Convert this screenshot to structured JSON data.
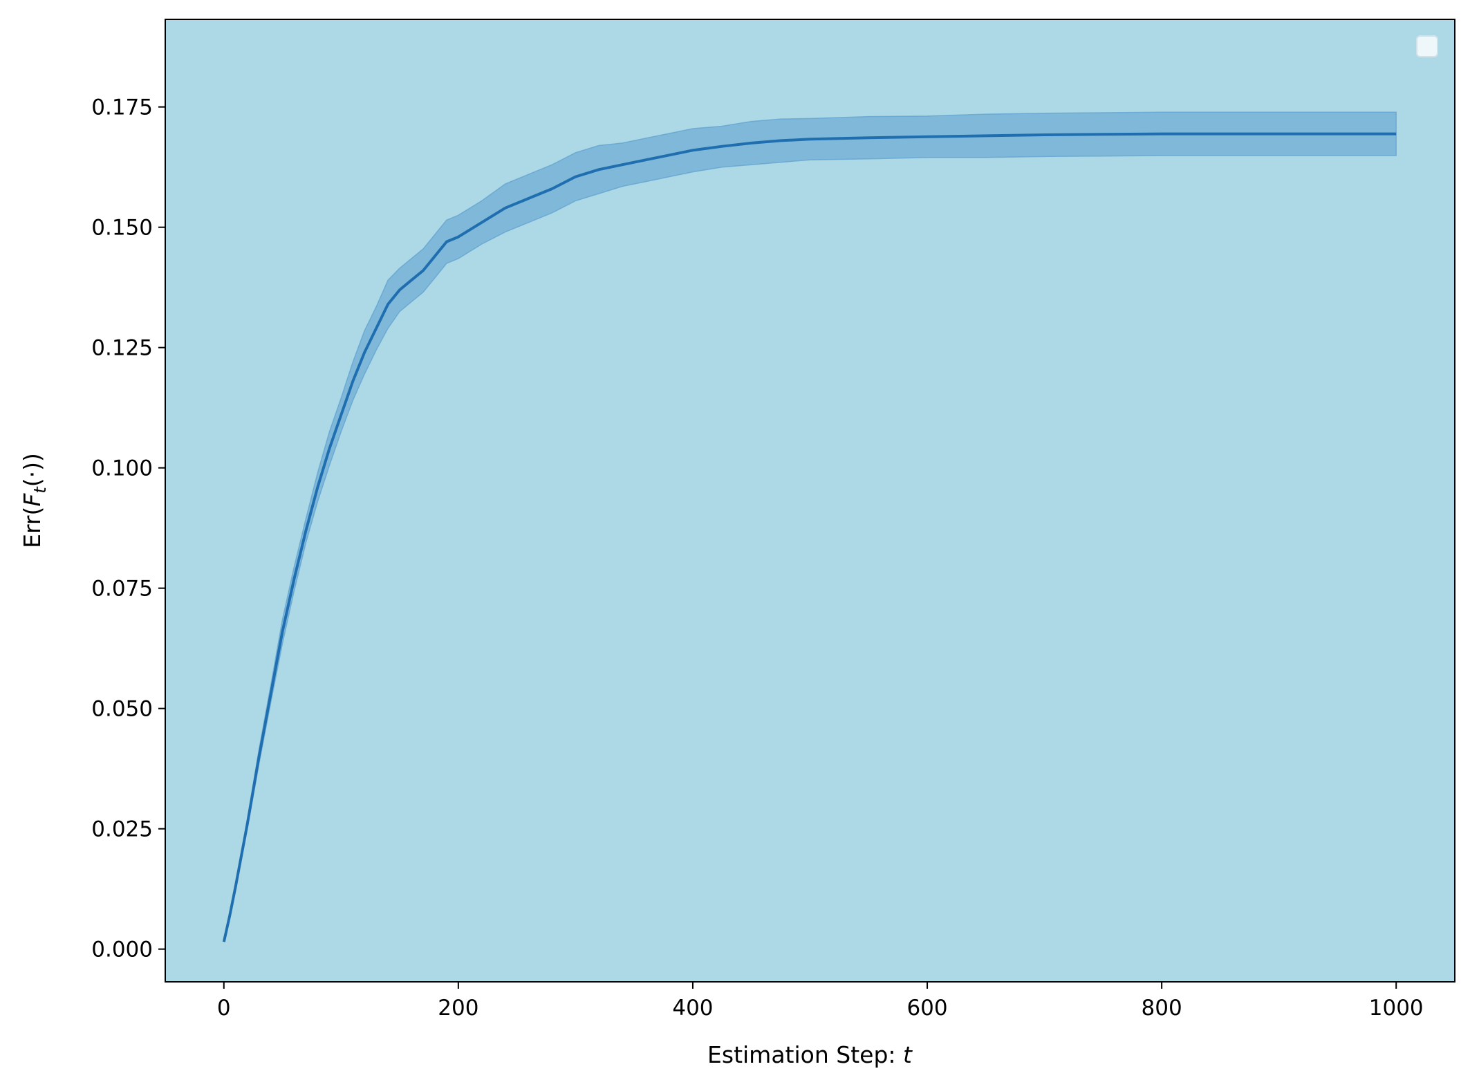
{
  "colors": {
    "plot_background": "#add8e6",
    "line": "#1f6fb0",
    "band": "#5b9fce",
    "legend_fill": "#eef7fa",
    "legend_stroke": "#cfe2ea"
  },
  "chart_data": {
    "type": "line",
    "title": "",
    "xlabel": "Estimation Step: ",
    "xlabel_var": "t",
    "ylabel": "Err(F_t(·))",
    "ylabel_parts": {
      "prefix": "Err(",
      "var": "F",
      "sub": "t",
      "suffix": "(·))"
    },
    "xlim": [
      -50,
      1050
    ],
    "ylim": [
      -0.0068,
      0.1932
    ],
    "xticks": [
      0,
      200,
      400,
      600,
      800,
      1000
    ],
    "xtick_labels": [
      "0",
      "200",
      "400",
      "600",
      "800",
      "1000"
    ],
    "yticks": [
      0.0,
      0.025,
      0.05,
      0.075,
      0.1,
      0.125,
      0.15,
      0.175
    ],
    "ytick_labels": [
      "0.000",
      "0.025",
      "0.050",
      "0.075",
      "0.100",
      "0.125",
      "0.150",
      "0.175"
    ],
    "grid": false,
    "legend": {
      "placement": "top-right",
      "entries": []
    },
    "series": [
      {
        "x": [
          0,
          5,
          10,
          20,
          30,
          40,
          50,
          60,
          70,
          80,
          90,
          100,
          110,
          120,
          130,
          140,
          150,
          160,
          170,
          180,
          190,
          200,
          220,
          240,
          260,
          280,
          300,
          320,
          340,
          360,
          380,
          400,
          425,
          450,
          475,
          500,
          550,
          600,
          650,
          700,
          750,
          800,
          900,
          1000
        ],
        "y": [
          0.0015,
          0.007,
          0.013,
          0.026,
          0.04,
          0.053,
          0.066,
          0.077,
          0.087,
          0.096,
          0.104,
          0.111,
          0.118,
          0.124,
          0.129,
          0.134,
          0.137,
          0.139,
          0.141,
          0.144,
          0.147,
          0.148,
          0.151,
          0.154,
          0.156,
          0.158,
          0.1605,
          0.162,
          0.163,
          0.164,
          0.165,
          0.166,
          0.1668,
          0.1675,
          0.168,
          0.1683,
          0.1686,
          0.1688,
          0.169,
          0.1692,
          0.1693,
          0.1694,
          0.1694,
          0.1694
        ],
        "lower": [
          0.0015,
          0.0068,
          0.0125,
          0.025,
          0.0385,
          0.0512,
          0.0635,
          0.0745,
          0.0845,
          0.093,
          0.1005,
          0.1075,
          0.114,
          0.1195,
          0.1245,
          0.129,
          0.1325,
          0.1345,
          0.1365,
          0.1395,
          0.1425,
          0.1435,
          0.1465,
          0.149,
          0.151,
          0.153,
          0.1555,
          0.157,
          0.1585,
          0.1595,
          0.1605,
          0.1615,
          0.1625,
          0.163,
          0.1635,
          0.164,
          0.1642,
          0.1645,
          0.1645,
          0.1647,
          0.1648,
          0.1649,
          0.1649,
          0.1649
        ],
        "upper": [
          0.0015,
          0.0072,
          0.0135,
          0.027,
          0.0415,
          0.0548,
          0.0685,
          0.0795,
          0.0895,
          0.099,
          0.1075,
          0.1145,
          0.122,
          0.1285,
          0.1335,
          0.139,
          0.1415,
          0.1435,
          0.1455,
          0.1485,
          0.1515,
          0.1525,
          0.1555,
          0.159,
          0.161,
          0.163,
          0.1655,
          0.167,
          0.1675,
          0.1685,
          0.1695,
          0.1705,
          0.171,
          0.172,
          0.1725,
          0.1726,
          0.173,
          0.1731,
          0.1735,
          0.1737,
          0.1738,
          0.1739,
          0.1739,
          0.1739
        ]
      }
    ]
  }
}
